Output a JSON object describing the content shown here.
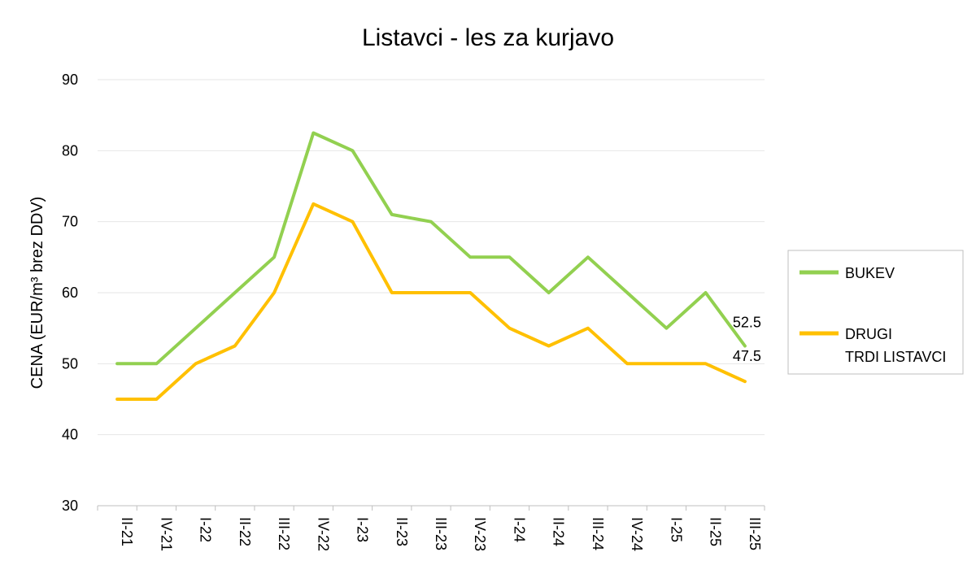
{
  "chart_data": {
    "type": "line",
    "title": "Listavci - les za kurjavo",
    "ylabel": "CENA (EUR/m³ brez DDV)",
    "xlabel": "",
    "ylim": [
      30,
      90
    ],
    "yticks": [
      30,
      40,
      50,
      60,
      70,
      80,
      90
    ],
    "categories": [
      "II-21",
      "IV-21",
      "I-22",
      "II-22",
      "III-22",
      "IV-22",
      "I-23",
      "II-23",
      "III-23",
      "IV-23",
      "I-24",
      "II-24",
      "III-24",
      "IV-24",
      "I-25",
      "II-25",
      "III-25"
    ],
    "series": [
      {
        "name": "BUKEV",
        "color": "#92d050",
        "values": [
          50,
          50,
          55,
          60,
          65,
          82.5,
          80,
          71,
          70,
          65,
          65,
          60,
          65,
          60,
          55,
          60,
          52.5
        ]
      },
      {
        "name_lines": [
          "DRUGI",
          "TRDI LISTAVCI"
        ],
        "color": "#ffc000",
        "values": [
          45,
          45,
          50,
          52.5,
          60,
          72.5,
          70,
          60,
          60,
          60,
          55,
          52.5,
          55,
          50,
          50,
          50,
          47.5
        ]
      }
    ],
    "data_labels": [
      "52.5",
      "47.5"
    ],
    "grid": true,
    "legend_position": "right"
  }
}
